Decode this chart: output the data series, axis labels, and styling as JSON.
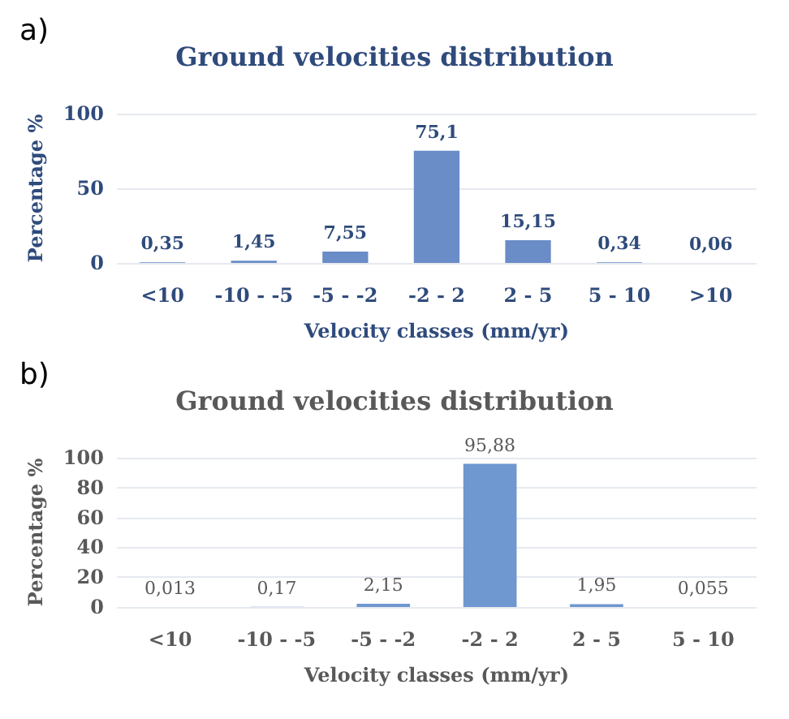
{
  "chart_data": [
    {
      "type": "bar",
      "title": "Ground velocities distribution",
      "xlabel": "Velocity classes (mm/yr)",
      "ylabel": "Percentage %",
      "annotations": [
        "a)"
      ],
      "categories": [
        "<10",
        "-10 - -5",
        "-5 - -2",
        "-2 - 2",
        "2 - 5",
        "5 - 10",
        ">10"
      ],
      "values": [
        0.35,
        1.45,
        7.55,
        75.1,
        15.15,
        0.34,
        0.06
      ],
      "value_labels": [
        "0,35",
        "1,45",
        "7,55",
        "75,1",
        "15,15",
        "0,34",
        "0,06"
      ],
      "color": "#6a8cc7",
      "ylim": [
        0,
        100
      ],
      "yticks": [
        0,
        50,
        100
      ],
      "grid": "y"
    },
    {
      "type": "bar",
      "title": "Ground velocities distribution",
      "xlabel": "Velocity classes (mm/yr)",
      "ylabel": "Percentage %",
      "annotations": [
        "b)"
      ],
      "categories": [
        "<10",
        "-10 - -5",
        "-5 - -2",
        "-2 - 2",
        "2 - 5",
        "5 - 10"
      ],
      "values": [
        0.013,
        0.17,
        2.15,
        95.88,
        1.95,
        0.055
      ],
      "value_labels": [
        "0,013",
        "0,17",
        "2,15",
        "95,88",
        "1,95",
        "0,055"
      ],
      "color": "#6f97d0",
      "ylim": [
        0,
        100
      ],
      "yticks": [
        0,
        20,
        40,
        60,
        80,
        100
      ],
      "grid": "y"
    }
  ]
}
